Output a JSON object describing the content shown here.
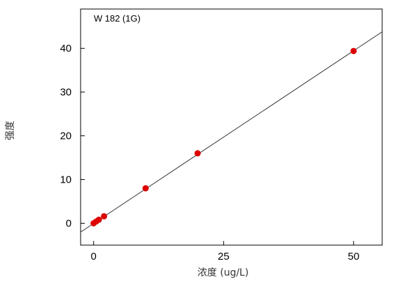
{
  "chart_data": {
    "type": "scatter",
    "annotation": "W 182 (1G)",
    "xlabel": "浓度 (ug/L)",
    "ylabel": "强度",
    "xlim": [
      -2.5,
      55.5
    ],
    "ylim": [
      -5,
      49
    ],
    "x_ticks": [
      0,
      25,
      50
    ],
    "x_tick_labels": [
      "0",
      "25",
      "50"
    ],
    "y_ticks": [
      0,
      10,
      20,
      30,
      40
    ],
    "y_tick_labels": [
      "0",
      "10",
      "20",
      "30",
      "40"
    ],
    "grid": false,
    "series": [
      {
        "points": [
          {
            "x": 0,
            "y": 0
          },
          {
            "x": 0.5,
            "y": 0.4
          },
          {
            "x": 1,
            "y": 0.8
          },
          {
            "x": 2,
            "y": 1.6
          },
          {
            "x": 10,
            "y": 8.0
          },
          {
            "x": 20,
            "y": 16.0
          },
          {
            "x": 50,
            "y": 39.4
          }
        ],
        "color": "#dd0000"
      }
    ],
    "fit_line": {
      "slope": 0.79,
      "intercept": -0.05,
      "color": "#333333"
    }
  }
}
